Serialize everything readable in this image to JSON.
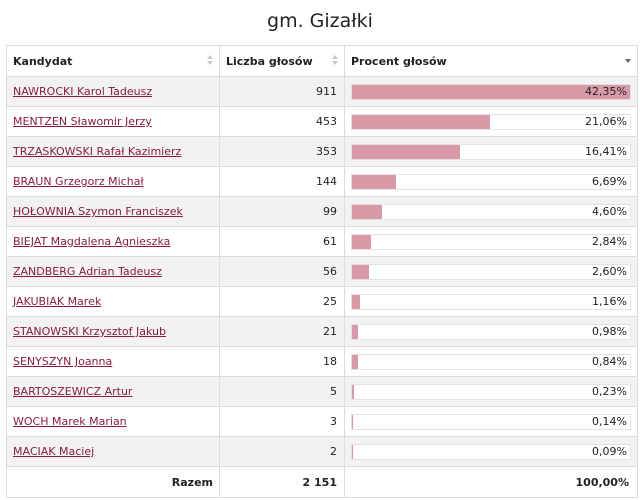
{
  "title": "gm. Gizałki",
  "headers": {
    "candidate": "Kandydat",
    "votes": "Liczba głosów",
    "percent": "Procent głosów"
  },
  "rows": [
    {
      "name": "NAWROCKI Karol Tadeusz",
      "votes": "911",
      "percent": "42,35%",
      "share": 42.35
    },
    {
      "name": "MENTZEN Sławomir Jerzy",
      "votes": "453",
      "percent": "21,06%",
      "share": 21.06
    },
    {
      "name": "TRZASKOWSKI Rafał Kazimierz",
      "votes": "353",
      "percent": "16,41%",
      "share": 16.41
    },
    {
      "name": "BRAUN Grzegorz Michał",
      "votes": "144",
      "percent": "6,69%",
      "share": 6.69
    },
    {
      "name": "HOŁOWNIA Szymon Franciszek",
      "votes": "99",
      "percent": "4,60%",
      "share": 4.6
    },
    {
      "name": "BIEJAT Magdalena Agnieszka",
      "votes": "61",
      "percent": "2,84%",
      "share": 2.84
    },
    {
      "name": "ZANDBERG Adrian Tadeusz",
      "votes": "56",
      "percent": "2,60%",
      "share": 2.6
    },
    {
      "name": "JAKUBIAK Marek",
      "votes": "25",
      "percent": "1,16%",
      "share": 1.16
    },
    {
      "name": "STANOWSKI Krzysztof Jakub",
      "votes": "21",
      "percent": "0,98%",
      "share": 0.98
    },
    {
      "name": "SENYSZYN Joanna",
      "votes": "18",
      "percent": "0,84%",
      "share": 0.84
    },
    {
      "name": "BARTOSZEWICZ Artur",
      "votes": "5",
      "percent": "0,23%",
      "share": 0.23
    },
    {
      "name": "WOCH Marek Marian",
      "votes": "3",
      "percent": "0,14%",
      "share": 0.14
    },
    {
      "name": "MACIAK Maciej",
      "votes": "2",
      "percent": "0,09%",
      "share": 0.09
    }
  ],
  "footer": {
    "label": "Razem",
    "votes": "2 151",
    "percent": "100,00%"
  },
  "colors": {
    "bar": "#d99aa8",
    "link": "#8a1d3b"
  }
}
